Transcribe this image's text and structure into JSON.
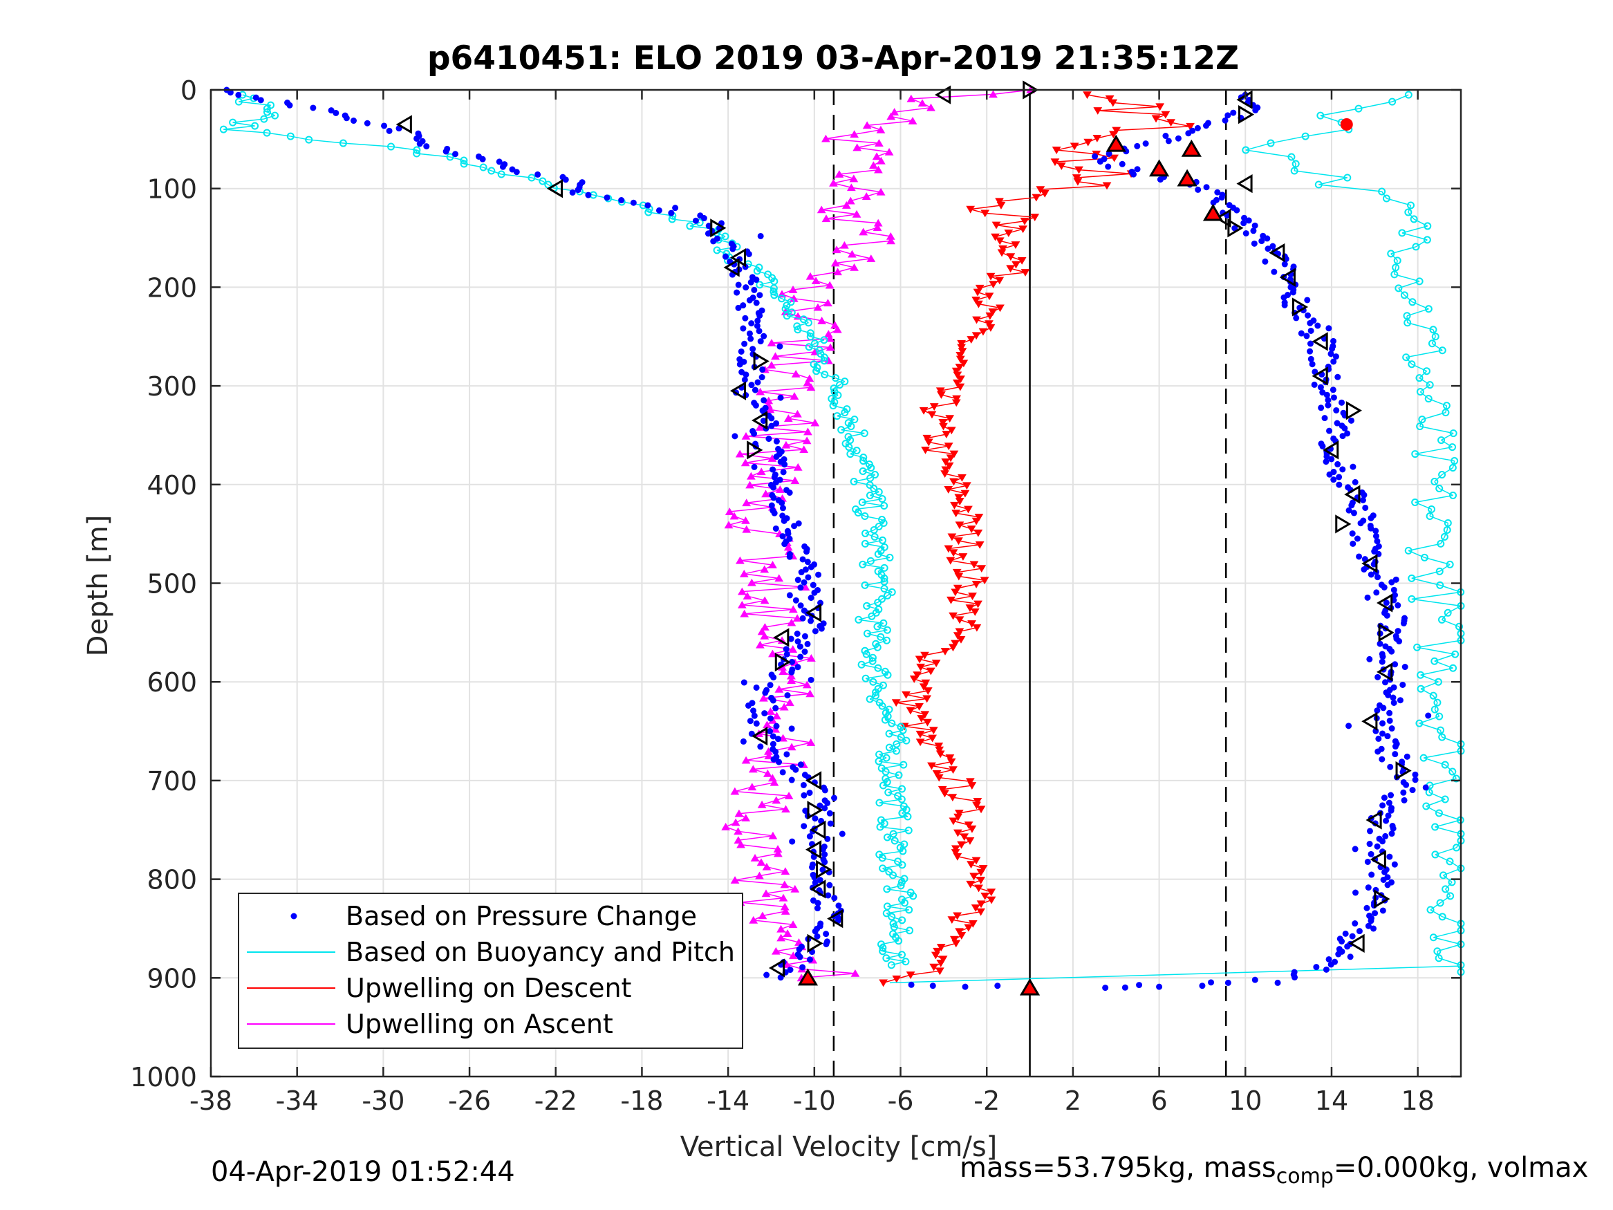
{
  "chart_data": {
    "type": "scatter",
    "title": "p6410451: ELO 2019 03-Apr-2019 21:35:12Z",
    "xlabel": "Vertical Velocity [cm/s]",
    "ylabel": "Depth [m]",
    "xlim": [
      -38,
      20
    ],
    "ylim": [
      0,
      1000
    ],
    "y_reversed": true,
    "xticks": [
      -38,
      -34,
      -30,
      -26,
      -22,
      -18,
      -14,
      -10,
      -6,
      -2,
      2,
      6,
      10,
      14,
      18
    ],
    "yticks": [
      0,
      100,
      200,
      300,
      400,
      500,
      600,
      700,
      800,
      900,
      1000
    ],
    "grid": true,
    "legend_position": "bottom-left",
    "vlines": [
      {
        "x": 0,
        "style": "solid"
      },
      {
        "x": -9.1,
        "style": "dashed"
      },
      {
        "x": 9.1,
        "style": "dashed"
      }
    ],
    "series": [
      {
        "name": "Based on Pressure Change",
        "color": "#0000ff",
        "marker": "dot",
        "descent_profile": [
          [
            0,
            -37.5
          ],
          [
            15,
            -34
          ],
          [
            40,
            -29.5
          ],
          [
            60,
            -27
          ],
          [
            80,
            -24
          ],
          [
            90,
            -21.5
          ],
          [
            105,
            -21
          ],
          [
            115,
            -18
          ],
          [
            130,
            -15
          ],
          [
            150,
            -14.2
          ],
          [
            170,
            -13.5
          ],
          [
            200,
            -13
          ],
          [
            230,
            -13
          ],
          [
            260,
            -12.7
          ],
          [
            300,
            -13.2
          ],
          [
            340,
            -12.3
          ],
          [
            380,
            -12
          ],
          [
            420,
            -11.5
          ],
          [
            460,
            -11
          ],
          [
            500,
            -10.3
          ],
          [
            540,
            -10.1
          ],
          [
            580,
            -11.2
          ],
          [
            620,
            -12.5
          ],
          [
            660,
            -12.2
          ],
          [
            690,
            -11
          ],
          [
            710,
            -10
          ],
          [
            760,
            -9.8
          ],
          [
            800,
            -9.6
          ],
          [
            840,
            -9.3
          ],
          [
            880,
            -10.5
          ],
          [
            900,
            -12
          ]
        ],
        "ascent_profile": [
          [
            910,
            4
          ],
          [
            905,
            8
          ],
          [
            900,
            12
          ],
          [
            890,
            13.8
          ],
          [
            860,
            15
          ],
          [
            820,
            16.3
          ],
          [
            780,
            16.3
          ],
          [
            740,
            16.2
          ],
          [
            700,
            17.5
          ],
          [
            660,
            16.5
          ],
          [
            620,
            16.7
          ],
          [
            580,
            16.8
          ],
          [
            540,
            16.8
          ],
          [
            500,
            16.5
          ],
          [
            460,
            15.6
          ],
          [
            420,
            15.3
          ],
          [
            380,
            14
          ],
          [
            340,
            14.3
          ],
          [
            300,
            13.7
          ],
          [
            260,
            13.6
          ],
          [
            220,
            12.5
          ],
          [
            190,
            12
          ],
          [
            160,
            11
          ],
          [
            130,
            9.5
          ],
          [
            110,
            8.8
          ],
          [
            95,
            7.5
          ],
          [
            85,
            5
          ],
          [
            70,
            3
          ],
          [
            40,
            8
          ],
          [
            20,
            10
          ],
          [
            5,
            9.7
          ]
        ]
      },
      {
        "name": "Based on Buoyancy and Pitch",
        "color": "#00e5ee",
        "marker": "circle-line",
        "descent_profile": [
          [
            5,
            -37
          ],
          [
            20,
            -35
          ],
          [
            40,
            -37
          ],
          [
            60,
            -29
          ],
          [
            80,
            -25
          ],
          [
            100,
            -22
          ],
          [
            120,
            -18
          ],
          [
            140,
            -15
          ],
          [
            160,
            -14
          ],
          [
            180,
            -13
          ],
          [
            200,
            -12
          ],
          [
            240,
            -10.5
          ],
          [
            280,
            -9.5
          ],
          [
            320,
            -8.5
          ],
          [
            360,
            -8
          ],
          [
            400,
            -7.6
          ],
          [
            460,
            -7.2
          ],
          [
            500,
            -7
          ],
          [
            540,
            -7.3
          ],
          [
            580,
            -7.2
          ],
          [
            620,
            -6.8
          ],
          [
            660,
            -6.4
          ],
          [
            700,
            -6.3
          ],
          [
            740,
            -6.3
          ],
          [
            780,
            -6.3
          ],
          [
            820,
            -6.1
          ],
          [
            860,
            -6.3
          ],
          [
            890,
            -6.5
          ]
        ],
        "ascent_profile": [
          [
            900,
            5
          ],
          [
            895,
            20
          ],
          [
            180,
            18
          ],
          [
            150,
            18
          ],
          [
            120,
            17
          ],
          [
            100,
            15
          ],
          [
            80,
            13
          ],
          [
            60,
            11
          ],
          [
            40,
            14
          ],
          [
            20,
            15
          ],
          [
            5,
            18.5
          ]
        ]
      },
      {
        "name": "Upwelling on Descent",
        "color": "#ff0000",
        "marker": "triangle-down",
        "profile": [
          [
            5,
            1
          ],
          [
            20,
            5
          ],
          [
            40,
            6
          ],
          [
            55,
            4
          ],
          [
            70,
            2
          ],
          [
            85,
            4
          ],
          [
            110,
            -1
          ],
          [
            130,
            -1
          ],
          [
            150,
            -1
          ],
          [
            170,
            -0.5
          ],
          [
            200,
            -1.5
          ],
          [
            230,
            -2.3
          ],
          [
            260,
            -3
          ],
          [
            300,
            -4
          ],
          [
            340,
            -4.4
          ],
          [
            380,
            -4.1
          ],
          [
            420,
            -3
          ],
          [
            460,
            -3
          ],
          [
            500,
            -2.8
          ],
          [
            540,
            -3
          ],
          [
            580,
            -4.5
          ],
          [
            620,
            -5.5
          ],
          [
            660,
            -5
          ],
          [
            700,
            -3.5
          ],
          [
            740,
            -2.8
          ],
          [
            780,
            -2.7
          ],
          [
            820,
            -2.5
          ],
          [
            860,
            -3.3
          ],
          [
            890,
            -4
          ],
          [
            905,
            -6
          ]
        ]
      },
      {
        "name": "Upwelling on Ascent",
        "color": "#ff00ff",
        "marker": "triangle-up",
        "profile": [
          [
            900,
            -9
          ],
          [
            880,
            -11
          ],
          [
            850,
            -12
          ],
          [
            820,
            -12
          ],
          [
            780,
            -13
          ],
          [
            740,
            -13
          ],
          [
            700,
            -12
          ],
          [
            660,
            -11.5
          ],
          [
            620,
            -11.5
          ],
          [
            580,
            -11.5
          ],
          [
            540,
            -12
          ],
          [
            500,
            -12
          ],
          [
            460,
            -12.5
          ],
          [
            420,
            -12.3
          ],
          [
            380,
            -12
          ],
          [
            340,
            -11.5
          ],
          [
            300,
            -11
          ],
          [
            260,
            -10.5
          ],
          [
            230,
            -10.5
          ],
          [
            200,
            -10.7
          ],
          [
            170,
            -8
          ],
          [
            150,
            -8
          ],
          [
            130,
            -8.5
          ],
          [
            110,
            -8.5
          ],
          [
            90,
            -8
          ],
          [
            70,
            -7
          ],
          [
            50,
            -8
          ],
          [
            30,
            -6
          ],
          [
            10,
            -4.5
          ],
          [
            0,
            -1
          ]
        ]
      }
    ],
    "open_triangle_markers": [
      [
        5,
        -4
      ],
      [
        0,
        0
      ],
      [
        35,
        -29
      ],
      [
        100,
        -22
      ],
      [
        140,
        -14.5
      ],
      [
        170,
        -13.5
      ],
      [
        180,
        -13.8
      ],
      [
        275,
        -12.5
      ],
      [
        305,
        -13.5
      ],
      [
        335,
        -12.5
      ],
      [
        365,
        -12.8
      ],
      [
        530,
        -10
      ],
      [
        555,
        -11.5
      ],
      [
        580,
        -11.5
      ],
      [
        655,
        -12.5
      ],
      [
        700,
        -10
      ],
      [
        730,
        -10
      ],
      [
        750,
        -9.8
      ],
      [
        770,
        -10
      ],
      [
        790,
        -9.6
      ],
      [
        810,
        -9.8
      ],
      [
        840,
        -9
      ],
      [
        865,
        -10
      ],
      [
        890,
        -11.7
      ],
      [
        10,
        10
      ],
      [
        25,
        10
      ],
      [
        95,
        10
      ],
      [
        130,
        9
      ],
      [
        140,
        9.5
      ],
      [
        165,
        11.5
      ],
      [
        190,
        12
      ],
      [
        220,
        12.5
      ],
      [
        255,
        13.5
      ],
      [
        290,
        13.5
      ],
      [
        325,
        15
      ],
      [
        365,
        14
      ],
      [
        410,
        15
      ],
      [
        440,
        14.5
      ],
      [
        480,
        15.8
      ],
      [
        520,
        16.5
      ],
      [
        550,
        16.5
      ],
      [
        590,
        16.5
      ],
      [
        640,
        15.8
      ],
      [
        690,
        17.3
      ],
      [
        740,
        16
      ],
      [
        780,
        16.2
      ],
      [
        820,
        16.3
      ],
      [
        865,
        15.2
      ]
    ],
    "red_filled_markers": [
      [
        35,
        14.7
      ],
      [
        55,
        4
      ],
      [
        60,
        7.5
      ],
      [
        80,
        6
      ],
      [
        90,
        7.3
      ],
      [
        125,
        8.5
      ],
      [
        900,
        -10.3
      ],
      [
        910,
        0
      ]
    ]
  },
  "footer": {
    "left": "04-Apr-2019 01:52:44",
    "right_pre": "mass=53.795kg, mass",
    "right_sub": "comp",
    "right_post": "=0.000kg, volmax"
  }
}
